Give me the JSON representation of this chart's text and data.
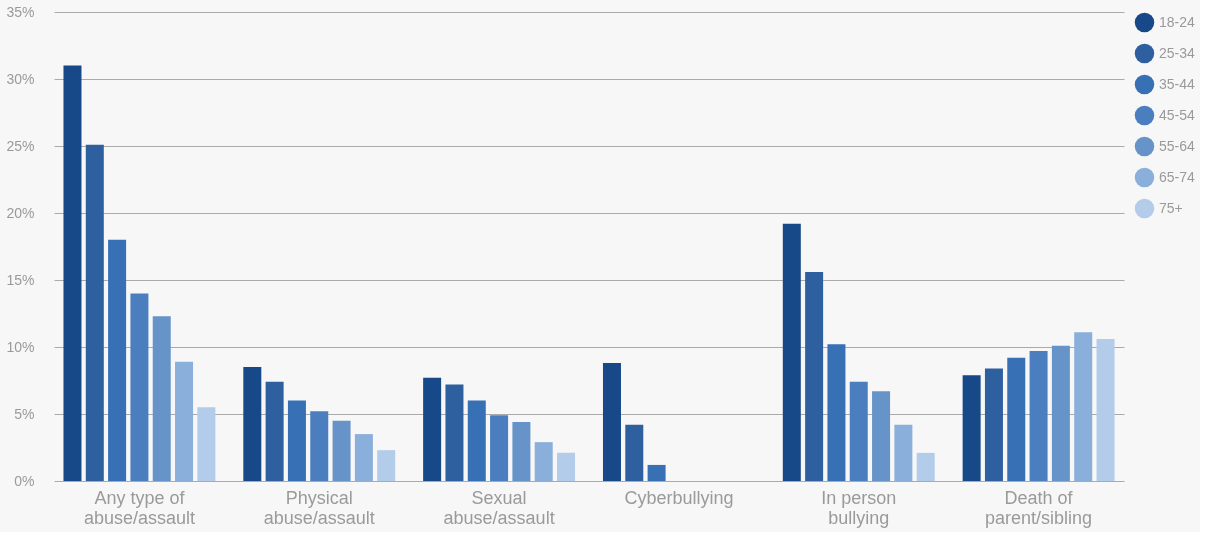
{
  "chart_data": {
    "type": "bar",
    "categories": [
      "Any type of abuse/assault",
      "Physical abuse/assault",
      "Sexual abuse/assault",
      "Cyberbullying",
      "In person bullying",
      "Death of parent/sibling"
    ],
    "series": [
      {
        "name": "18-24",
        "color": "#174888",
        "values": [
          31.0,
          8.5,
          7.7,
          8.8,
          19.2,
          7.9
        ]
      },
      {
        "name": "25-34",
        "color": "#2e5f9f",
        "values": [
          25.1,
          7.4,
          7.2,
          4.2,
          15.6,
          8.4
        ]
      },
      {
        "name": "35-44",
        "color": "#3770b5",
        "values": [
          18.0,
          6.0,
          6.0,
          1.2,
          10.2,
          9.2
        ]
      },
      {
        "name": "45-54",
        "color": "#4a7ebf",
        "values": [
          14.0,
          5.2,
          4.9,
          null,
          7.4,
          9.7
        ]
      },
      {
        "name": "55-64",
        "color": "#6794c8",
        "values": [
          12.3,
          4.5,
          4.4,
          null,
          6.7,
          10.1
        ]
      },
      {
        "name": "65-74",
        "color": "#8aafdb",
        "values": [
          8.9,
          3.5,
          2.9,
          null,
          4.2,
          11.1
        ]
      },
      {
        "name": "75+",
        "color": "#b2cce9",
        "values": [
          5.5,
          2.3,
          2.1,
          null,
          2.1,
          10.6
        ]
      }
    ],
    "ylim": [
      0,
      35
    ],
    "yticks": [
      {
        "value": 0,
        "label": "0%"
      },
      {
        "value": 5,
        "label": "5%"
      },
      {
        "value": 10,
        "label": "10%"
      },
      {
        "value": 15,
        "label": "15%"
      },
      {
        "value": 20,
        "label": "20%"
      },
      {
        "value": 25,
        "label": "25%"
      },
      {
        "value": 30,
        "label": "30%"
      },
      {
        "value": 35,
        "label": "35%"
      }
    ],
    "grid": "y",
    "legend": "top right"
  }
}
